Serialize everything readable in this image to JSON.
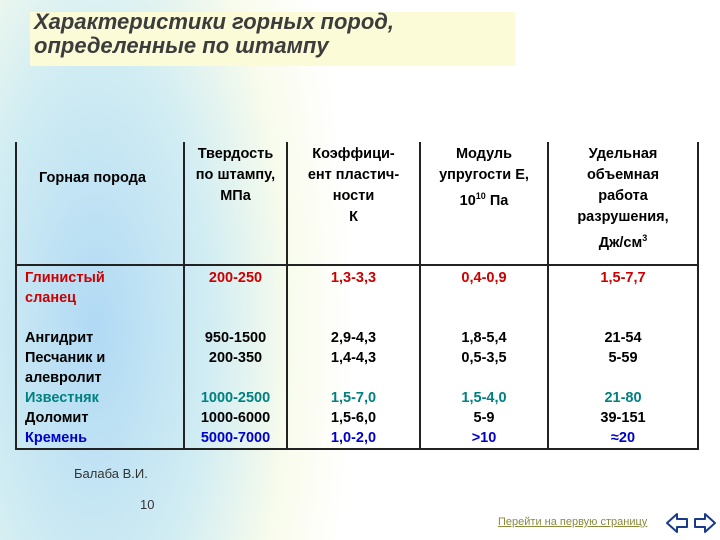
{
  "title": {
    "line1": "Характеристики горных пород,",
    "line2": "определенные по штампу"
  },
  "table": {
    "headers": [
      [
        "Горная порода"
      ],
      [
        "Твердость",
        "по штампу,",
        "МПа"
      ],
      [
        "Коэффици-",
        "ент пластич-",
        "ности",
        "К"
      ],
      [
        "Модуль",
        "упругости E,",
        "10",
        "10",
        " Па"
      ],
      [
        "Удельная",
        "объемная",
        "работа",
        "разрушения,",
        "Дж/см",
        "3"
      ]
    ],
    "rows": [
      {
        "name": [
          "Глинистый",
          "сланец"
        ],
        "hardness": [
          "200-250"
        ],
        "plasticity": [
          "1,3-3,3"
        ],
        "modulus": [
          "0,4-0,9"
        ],
        "work": [
          "1,5-7,7"
        ],
        "color": "#cc0000"
      },
      {
        "name": [
          "Ангидрит"
        ],
        "hardness": [
          "950-1500"
        ],
        "plasticity": [
          "2,9-4,3"
        ],
        "modulus": [
          "1,8-5,4"
        ],
        "work": [
          "21-54"
        ],
        "color": "#000000"
      },
      {
        "name": [
          "Песчаник и",
          "алевролит"
        ],
        "hardness": [
          "200-350"
        ],
        "plasticity": [
          "1,4-4,3"
        ],
        "modulus": [
          "0,5-3,5"
        ],
        "work": [
          "5-59"
        ],
        "color": "#000000"
      },
      {
        "name": [
          "Известняк"
        ],
        "hardness": [
          "1000-2500"
        ],
        "plasticity": [
          "1,5-7,0"
        ],
        "modulus": [
          "1,5-4,0"
        ],
        "work": [
          "21-80"
        ],
        "color": "#008080"
      },
      {
        "name": [
          "Доломит"
        ],
        "hardness": [
          "1000-6000"
        ],
        "plasticity": [
          "1,5-6,0"
        ],
        "modulus": [
          "5-9"
        ],
        "work": [
          "39-151"
        ],
        "color": "#000000"
      },
      {
        "name": [
          "Кремень"
        ],
        "hardness": [
          "5000-7000"
        ],
        "plasticity": [
          "1,0-2,0"
        ],
        "modulus": [
          ">10"
        ],
        "work": [
          "≈20"
        ],
        "color": "#0000cc"
      }
    ]
  },
  "footer": {
    "author": "Балаба В.И.",
    "page_number": "10",
    "nav_link": "Перейти на первую страницу"
  },
  "icons": {
    "nav_arrows": "left-right-arrows-icon"
  },
  "colors": {
    "title_band": "#fbfbd8",
    "red": "#cc0000",
    "teal": "#008080",
    "blue": "#0000cc"
  }
}
